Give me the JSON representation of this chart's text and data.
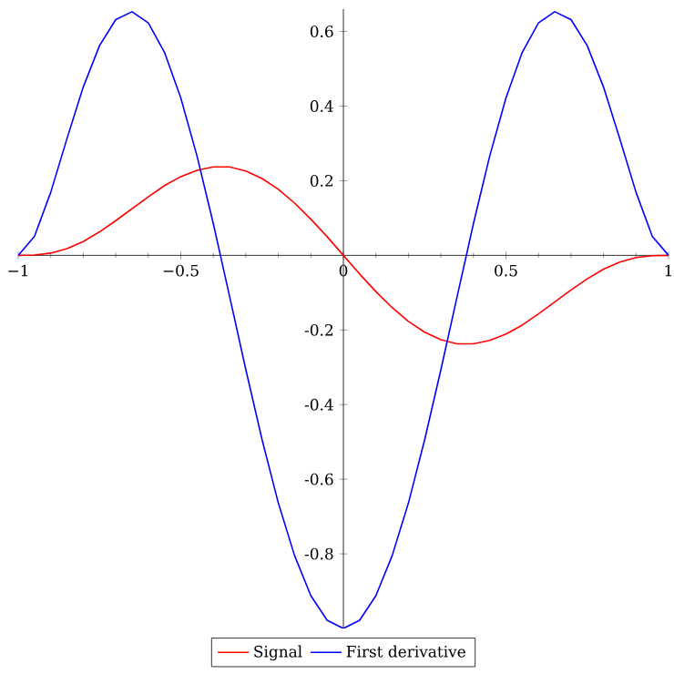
{
  "chart_data": {
    "type": "line",
    "x": [
      -1,
      -0.95,
      -0.9,
      -0.85,
      -0.8,
      -0.75,
      -0.7,
      -0.65,
      -0.6,
      -0.55,
      -0.5,
      -0.45,
      -0.4,
      -0.35,
      -0.3,
      -0.25,
      -0.2,
      -0.15,
      -0.1,
      -0.05,
      0,
      0.05,
      0.1,
      0.15,
      0.2,
      0.25,
      0.3,
      0.35,
      0.4,
      0.45,
      0.5,
      0.55,
      0.6,
      0.65,
      0.7,
      0.75,
      0.8,
      0.85,
      0.9,
      0.95,
      1
    ],
    "series": [
      {
        "name": "Signal",
        "color": "#ff0000",
        "values": [
          0,
          0.001,
          0.006,
          0.018,
          0.037,
          0.063,
          0.093,
          0.125,
          0.157,
          0.187,
          0.211,
          0.228,
          0.237,
          0.237,
          0.226,
          0.206,
          0.177,
          0.14,
          0.097,
          0.05,
          0,
          -0.05,
          -0.097,
          -0.14,
          -0.177,
          -0.206,
          -0.226,
          -0.237,
          -0.237,
          -0.228,
          -0.211,
          -0.187,
          -0.157,
          -0.125,
          -0.093,
          -0.063,
          -0.037,
          -0.018,
          -0.006,
          -0.001,
          0
        ]
      },
      {
        "name": "First derivative",
        "color": "#0000ff",
        "values": [
          0,
          0.051,
          0.169,
          0.313,
          0.451,
          0.562,
          0.632,
          0.653,
          0.623,
          0.544,
          0.422,
          0.266,
          0.085,
          -0.11,
          -0.306,
          -0.494,
          -0.664,
          -0.805,
          -0.912,
          -0.978,
          -1,
          -0.978,
          -0.912,
          -0.805,
          -0.664,
          -0.494,
          -0.306,
          -0.11,
          0.085,
          0.266,
          0.422,
          0.544,
          0.623,
          0.653,
          0.632,
          0.562,
          0.451,
          0.313,
          0.169,
          0.051,
          0
        ]
      }
    ],
    "xlim": [
      -1,
      1
    ],
    "ylim": [
      -1,
      0.66
    ],
    "xticks": [
      {
        "value": -1,
        "label": "−1"
      },
      {
        "value": -0.5,
        "label": "−0.5"
      },
      {
        "value": 0,
        "label": "0"
      },
      {
        "value": 0.5,
        "label": "0.5"
      },
      {
        "value": 1,
        "label": "1"
      }
    ],
    "yticks": [
      {
        "value": -0.8,
        "label": "-0.8"
      },
      {
        "value": -0.6,
        "label": "-0.6"
      },
      {
        "value": -0.4,
        "label": "-0.4"
      },
      {
        "value": -0.2,
        "label": "-0.2"
      },
      {
        "value": 0.2,
        "label": "0.2"
      },
      {
        "value": 0.4,
        "label": "0.4"
      },
      {
        "value": 0.6,
        "label": "0.6"
      }
    ],
    "legend": "bottom",
    "line_style": "solid",
    "marker": "none",
    "grid": false
  }
}
